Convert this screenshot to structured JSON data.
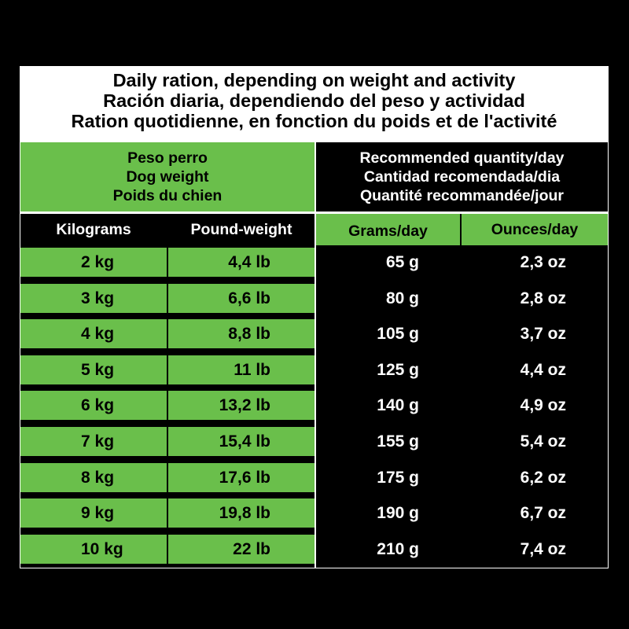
{
  "title": {
    "en": "Daily ration, depending on weight and activity",
    "es": "Ración diaria, dependiendo del peso y actividad",
    "fr": "Ration quotidienne, en fonction du poids et de l'activité"
  },
  "dog_weight_header": {
    "es": "Peso perro",
    "en": "Dog weight",
    "fr": "Poids du chien"
  },
  "quantity_header": {
    "en": "Recommended quantity/day",
    "es": "Cantidad recomendada/dia",
    "fr": "Quantité recommandée/jour"
  },
  "columns": [
    "Kilograms",
    "Pound-weight",
    "Grams/day",
    "Ounces/day"
  ],
  "rows": [
    {
      "kg": "2 kg",
      "lb": "4,4 lb",
      "grams": "65 g",
      "oz": "2,3 oz"
    },
    {
      "kg": "3 kg",
      "lb": "6,6 lb",
      "grams": "80 g",
      "oz": "2,8 oz"
    },
    {
      "kg": "4 kg",
      "lb": "8,8 lb",
      "grams": "105 g",
      "oz": "3,7 oz"
    },
    {
      "kg": "5 kg",
      "lb": "11 lb",
      "grams": "125 g",
      "oz": "4,4 oz"
    },
    {
      "kg": "6 kg",
      "lb": "13,2 lb",
      "grams": "140 g",
      "oz": "4,9 oz"
    },
    {
      "kg": "7 kg",
      "lb": "15,4 lb",
      "grams": "155 g",
      "oz": "5,4 oz"
    },
    {
      "kg": "8 kg",
      "lb": "17,6 lb",
      "grams": "175 g",
      "oz": "6,2 oz"
    },
    {
      "kg": "9 kg",
      "lb": "19,8 lb",
      "grams": "190 g",
      "oz": "6,7 oz"
    },
    {
      "kg": "10 kg",
      "lb": "22 lb",
      "grams": "210 g",
      "oz": "7,4 oz"
    }
  ],
  "colors": {
    "green": "#6abf4b",
    "black": "#000000",
    "white": "#ffffff"
  }
}
